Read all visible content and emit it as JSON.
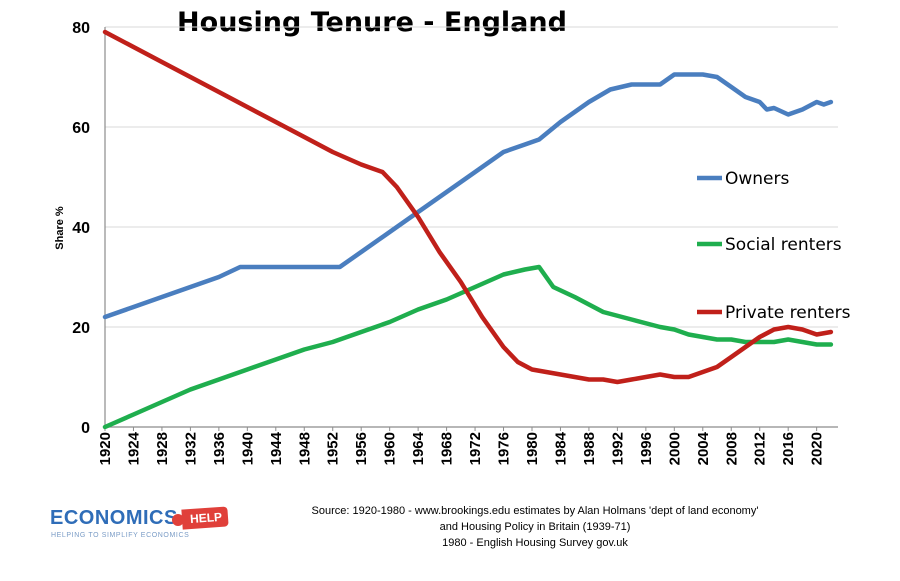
{
  "chart_data": {
    "type": "line",
    "title": "Housing Tenure - England",
    "ylabel": "Share %",
    "xlabel": "",
    "xlim": [
      1920,
      2023
    ],
    "ylim": [
      0,
      80
    ],
    "yticks": [
      0,
      20,
      40,
      60,
      80
    ],
    "xticks": [
      1920,
      1924,
      1928,
      1932,
      1936,
      1940,
      1944,
      1948,
      1952,
      1956,
      1960,
      1964,
      1968,
      1972,
      1976,
      1980,
      1984,
      1988,
      1992,
      1996,
      2000,
      2004,
      2008,
      2012,
      2016,
      2020
    ],
    "grid": true,
    "legend_position": "right",
    "series": [
      {
        "name": "Owners",
        "color": "#4a7ebf",
        "points": [
          [
            1920,
            22
          ],
          [
            1924,
            24
          ],
          [
            1928,
            26
          ],
          [
            1932,
            28
          ],
          [
            1936,
            30
          ],
          [
            1939,
            32
          ],
          [
            1945,
            32
          ],
          [
            1953,
            32
          ],
          [
            1956,
            35
          ],
          [
            1960,
            39
          ],
          [
            1964,
            43
          ],
          [
            1968,
            47
          ],
          [
            1972,
            51
          ],
          [
            1976,
            55
          ],
          [
            1979,
            56.5
          ],
          [
            1981,
            57.5
          ],
          [
            1984,
            61
          ],
          [
            1988,
            65
          ],
          [
            1991,
            67.5
          ],
          [
            1994,
            68.5
          ],
          [
            1996,
            68.5
          ],
          [
            1998,
            68.5
          ],
          [
            2000,
            70.5
          ],
          [
            2002,
            70.5
          ],
          [
            2004,
            70.5
          ],
          [
            2006,
            70
          ],
          [
            2008,
            68
          ],
          [
            2010,
            66
          ],
          [
            2012,
            65
          ],
          [
            2013,
            63.5
          ],
          [
            2014,
            63.8
          ],
          [
            2016,
            62.5
          ],
          [
            2018,
            63.5
          ],
          [
            2020,
            65
          ],
          [
            2021,
            64.5
          ],
          [
            2022,
            65
          ]
        ]
      },
      {
        "name": "Social renters",
        "color": "#1fae4e",
        "points": [
          [
            1920,
            0
          ],
          [
            1924,
            2.5
          ],
          [
            1928,
            5
          ],
          [
            1932,
            7.5
          ],
          [
            1936,
            9.5
          ],
          [
            1940,
            11.5
          ],
          [
            1944,
            13.5
          ],
          [
            1948,
            15.5
          ],
          [
            1952,
            17
          ],
          [
            1956,
            19
          ],
          [
            1960,
            21
          ],
          [
            1964,
            23.5
          ],
          [
            1968,
            25.5
          ],
          [
            1972,
            28
          ],
          [
            1976,
            30.5
          ],
          [
            1979,
            31.5
          ],
          [
            1981,
            32
          ],
          [
            1983,
            28
          ],
          [
            1986,
            26
          ],
          [
            1990,
            23
          ],
          [
            1994,
            21.5
          ],
          [
            1998,
            20
          ],
          [
            2000,
            19.5
          ],
          [
            2002,
            18.5
          ],
          [
            2004,
            18
          ],
          [
            2006,
            17.5
          ],
          [
            2008,
            17.5
          ],
          [
            2010,
            17
          ],
          [
            2012,
            17
          ],
          [
            2014,
            17
          ],
          [
            2016,
            17.5
          ],
          [
            2018,
            17
          ],
          [
            2020,
            16.5
          ],
          [
            2022,
            16.5
          ]
        ]
      },
      {
        "name": "Private renters",
        "color": "#c0201a",
        "points": [
          [
            1920,
            79
          ],
          [
            1924,
            76
          ],
          [
            1928,
            73
          ],
          [
            1932,
            70
          ],
          [
            1936,
            67
          ],
          [
            1940,
            64
          ],
          [
            1944,
            61
          ],
          [
            1948,
            58
          ],
          [
            1952,
            55
          ],
          [
            1956,
            52.5
          ],
          [
            1959,
            51
          ],
          [
            1961,
            48
          ],
          [
            1964,
            42
          ],
          [
            1967,
            35
          ],
          [
            1970,
            29
          ],
          [
            1973,
            22
          ],
          [
            1976,
            16
          ],
          [
            1978,
            13
          ],
          [
            1980,
            11.5
          ],
          [
            1984,
            10.5
          ],
          [
            1988,
            9.5
          ],
          [
            1990,
            9.5
          ],
          [
            1992,
            9
          ],
          [
            1994,
            9.5
          ],
          [
            1996,
            10
          ],
          [
            1998,
            10.5
          ],
          [
            2000,
            10
          ],
          [
            2002,
            10
          ],
          [
            2004,
            11
          ],
          [
            2006,
            12
          ],
          [
            2008,
            14
          ],
          [
            2010,
            16
          ],
          [
            2012,
            18
          ],
          [
            2014,
            19.5
          ],
          [
            2016,
            20
          ],
          [
            2018,
            19.5
          ],
          [
            2020,
            18.5
          ],
          [
            2022,
            19
          ]
        ]
      }
    ]
  },
  "source": {
    "line1": "Source: 1920-1980 - www.brookings.edu estimates by Alan Holmans 'dept of land economy'",
    "line2": "and Housing Policy in Britain (1939-71)",
    "line3": "1980 - English Housing Survey gov.uk"
  },
  "logo": {
    "main": "ECONOMICS",
    "badge": "HELP",
    "tagline": "HELPING TO SIMPLIFY ECONOMICS"
  }
}
